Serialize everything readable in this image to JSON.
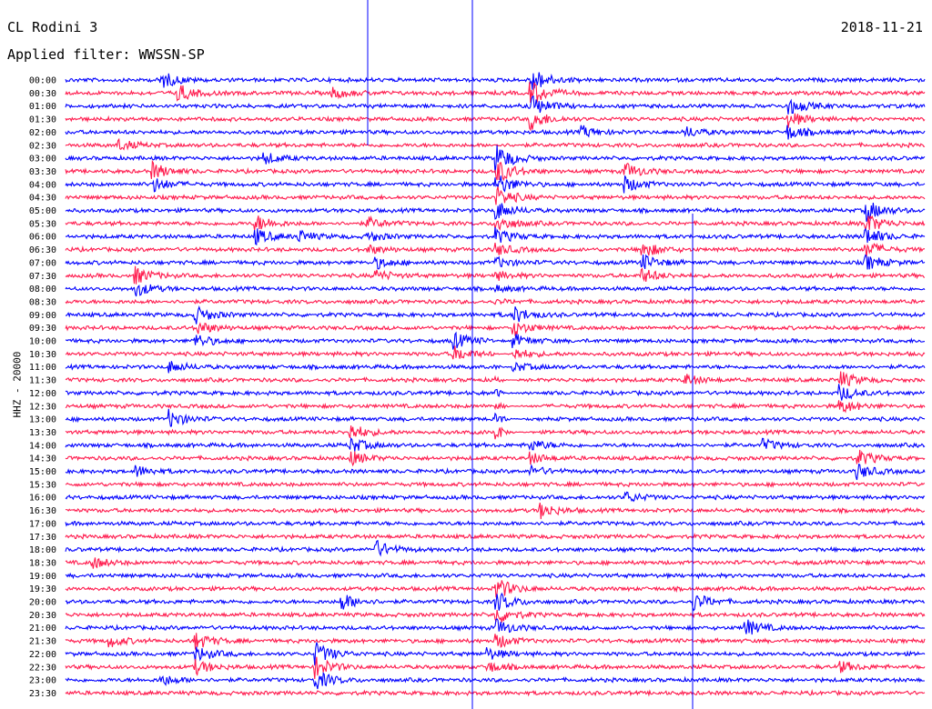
{
  "header": {
    "station": "CL Rodini 3",
    "date": "2018-11-21",
    "filter": "Applied filter: WWSSN-SP"
  },
  "chart_data": {
    "type": "line",
    "title": "CL Rodini 3",
    "ylabel": "HHZ - 20000",
    "row_labels": [
      "00:00",
      "00:30",
      "01:00",
      "01:30",
      "02:00",
      "02:30",
      "03:00",
      "03:30",
      "04:00",
      "04:30",
      "05:00",
      "05:30",
      "06:00",
      "06:30",
      "07:00",
      "07:30",
      "08:00",
      "08:30",
      "09:00",
      "09:30",
      "10:00",
      "10:30",
      "11:00",
      "11:30",
      "12:00",
      "12:30",
      "13:00",
      "13:30",
      "14:00",
      "14:30",
      "15:00",
      "15:30",
      "16:00",
      "16:30",
      "17:00",
      "17:30",
      "18:00",
      "18:30",
      "19:00",
      "19:30",
      "20:00",
      "20:30",
      "21:00",
      "21:30",
      "22:00",
      "22:30",
      "23:00",
      "23:30"
    ],
    "row_colors": [
      "#0000ff",
      "#ff1a4d"
    ],
    "events": [
      {
        "x": 0.11,
        "rows": [
          0
        ],
        "amp": 3
      },
      {
        "x": 0.13,
        "rows": [
          1
        ],
        "amp": 3
      },
      {
        "x": 0.31,
        "rows": [
          1
        ],
        "amp": 2
      },
      {
        "x": 0.54,
        "rows": [
          0,
          1,
          2,
          3
        ],
        "amp": 5
      },
      {
        "x": 0.84,
        "rows": [
          2,
          3,
          4
        ],
        "amp": 3
      },
      {
        "x": 0.06,
        "rows": [
          5
        ],
        "amp": 2
      },
      {
        "x": 0.6,
        "rows": [
          4
        ],
        "amp": 2
      },
      {
        "x": 0.72,
        "rows": [
          4
        ],
        "amp": 2
      },
      {
        "x": 0.1,
        "rows": [
          7,
          8
        ],
        "amp": 3
      },
      {
        "x": 0.23,
        "rows": [
          6
        ],
        "amp": 2
      },
      {
        "x": 0.65,
        "rows": [
          7,
          8
        ],
        "amp": 3
      },
      {
        "x": 0.5,
        "rows": [
          6,
          7,
          8,
          9,
          10,
          11,
          12,
          13,
          14,
          15,
          16,
          17,
          18,
          19,
          20,
          21,
          22,
          23,
          24,
          25,
          26,
          27
        ],
        "amp": 5
      },
      {
        "x": 0.93,
        "rows": [
          10,
          11,
          12,
          13,
          14
        ],
        "amp": 4
      },
      {
        "x": 0.22,
        "rows": [
          11,
          12
        ],
        "amp": 3
      },
      {
        "x": 0.27,
        "rows": [
          12
        ],
        "amp": 2
      },
      {
        "x": 0.35,
        "rows": [
          11,
          12,
          13
        ],
        "amp": 2
      },
      {
        "x": 0.67,
        "rows": [
          13,
          14,
          15
        ],
        "amp": 3
      },
      {
        "x": 0.08,
        "rows": [
          15,
          16
        ],
        "amp": 3
      },
      {
        "x": 0.36,
        "rows": [
          14,
          15
        ],
        "amp": 2
      },
      {
        "x": 0.52,
        "rows": [
          18,
          19,
          20,
          21,
          22
        ],
        "amp": 3
      },
      {
        "x": 0.15,
        "rows": [
          18,
          19,
          20
        ],
        "amp": 3
      },
      {
        "x": 0.45,
        "rows": [
          20,
          21
        ],
        "amp": 3
      },
      {
        "x": 0.12,
        "rows": [
          22
        ],
        "amp": 2
      },
      {
        "x": 0.72,
        "rows": [
          23
        ],
        "amp": 2
      },
      {
        "x": 0.9,
        "rows": [
          23,
          24,
          25
        ],
        "amp": 3
      },
      {
        "x": 0.12,
        "rows": [
          26
        ],
        "amp": 3
      },
      {
        "x": 0.33,
        "rows": [
          27,
          28,
          29
        ],
        "amp": 3
      },
      {
        "x": 0.54,
        "rows": [
          28,
          29,
          30
        ],
        "amp": 2
      },
      {
        "x": 0.81,
        "rows": [
          28
        ],
        "amp": 2
      },
      {
        "x": 0.92,
        "rows": [
          29,
          30
        ],
        "amp": 3
      },
      {
        "x": 0.08,
        "rows": [
          30
        ],
        "amp": 2
      },
      {
        "x": 0.65,
        "rows": [
          32
        ],
        "amp": 2
      },
      {
        "x": 0.55,
        "rows": [
          33
        ],
        "amp": 3
      },
      {
        "x": 0.36,
        "rows": [
          36
        ],
        "amp": 3
      },
      {
        "x": 0.03,
        "rows": [
          37
        ],
        "amp": 2
      },
      {
        "x": 0.32,
        "rows": [
          40
        ],
        "amp": 3
      },
      {
        "x": 0.73,
        "rows": [
          40
        ],
        "amp": 3
      },
      {
        "x": 0.5,
        "rows": [
          39,
          40,
          41,
          42,
          43
        ],
        "amp": 4
      },
      {
        "x": 0.79,
        "rows": [
          42
        ],
        "amp": 3
      },
      {
        "x": 0.05,
        "rows": [
          43
        ],
        "amp": 2
      },
      {
        "x": 0.15,
        "rows": [
          43,
          44,
          45
        ],
        "amp": 3
      },
      {
        "x": 0.29,
        "rows": [
          44,
          45,
          46
        ],
        "amp": 4
      },
      {
        "x": 0.11,
        "rows": [
          46
        ],
        "amp": 2
      },
      {
        "x": 0.49,
        "rows": [
          44,
          45
        ],
        "amp": 2
      },
      {
        "x": 0.9,
        "rows": [
          45
        ],
        "amp": 2
      }
    ]
  }
}
